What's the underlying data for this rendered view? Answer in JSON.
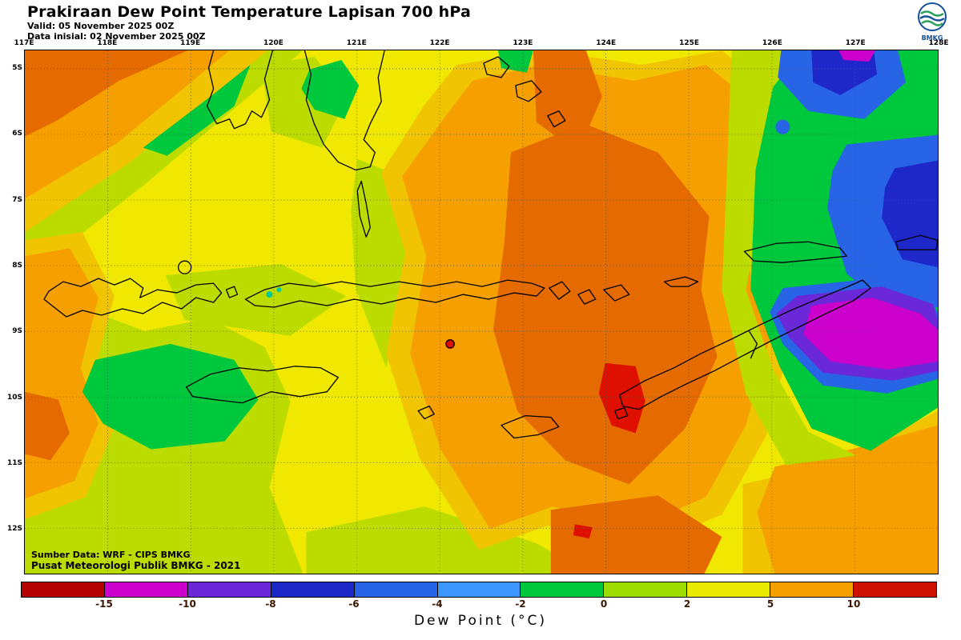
{
  "header": {
    "title": "Prakiraan Dew Point Temperature Lapisan 700 hPa",
    "valid_line": "Valid: 05 November 2025 00Z",
    "init_line": "Data inisial: 02 November 2025 00Z",
    "logo_text": "BMKG"
  },
  "map": {
    "lon_labels": [
      "117E",
      "118E",
      "119E",
      "120E",
      "121E",
      "122E",
      "123E",
      "124E",
      "125E",
      "126E",
      "127E",
      "128E"
    ],
    "lat_labels": [
      "5S",
      "6S",
      "7S",
      "8S",
      "9S",
      "10S",
      "11S",
      "12S"
    ],
    "source_line1": "Sumber Data: WRF - CIPS BMKG",
    "source_line2": "Pusat Meteorologi Publik BMKG - 2021"
  },
  "colorbar": {
    "label": "Dew Point (°C)",
    "tick_labels": [
      "-15",
      "-10",
      "-8",
      "-6",
      "-4",
      "-2",
      "0",
      "2",
      "5",
      "10"
    ],
    "segment_colors": [
      "#b40000",
      "#cc00cc",
      "#6a28d8",
      "#1e28c8",
      "#2864e6",
      "#3c96ff",
      "#00c83c",
      "#9cdc00",
      "#e8e800",
      "#f5a000",
      "#cd1000"
    ]
  },
  "palette": {
    "yellow": "#f0e800",
    "ygreen": "#bcdc00",
    "amber": "#f0c400",
    "orange": "#f5a000",
    "dkorange": "#e56a00",
    "red": "#e01000",
    "green": "#00c83c",
    "teal": "#00c896",
    "blue": "#2864e6",
    "dkblue": "#1e28c8",
    "purple": "#6a28d8",
    "magenta": "#cc00cc"
  },
  "chart_data": {
    "type": "heatmap",
    "title": "Prakiraan Dew Point Temperature Lapisan 700 hPa",
    "units": "°C",
    "colorbar_ticks": [
      -15,
      -10,
      -8,
      -6,
      -4,
      -2,
      0,
      2,
      5,
      10
    ],
    "lon_range": [
      "117E",
      "128E"
    ],
    "lat_range": [
      "5S",
      "12S"
    ],
    "legend_label": "Dew Point (°C)"
  }
}
